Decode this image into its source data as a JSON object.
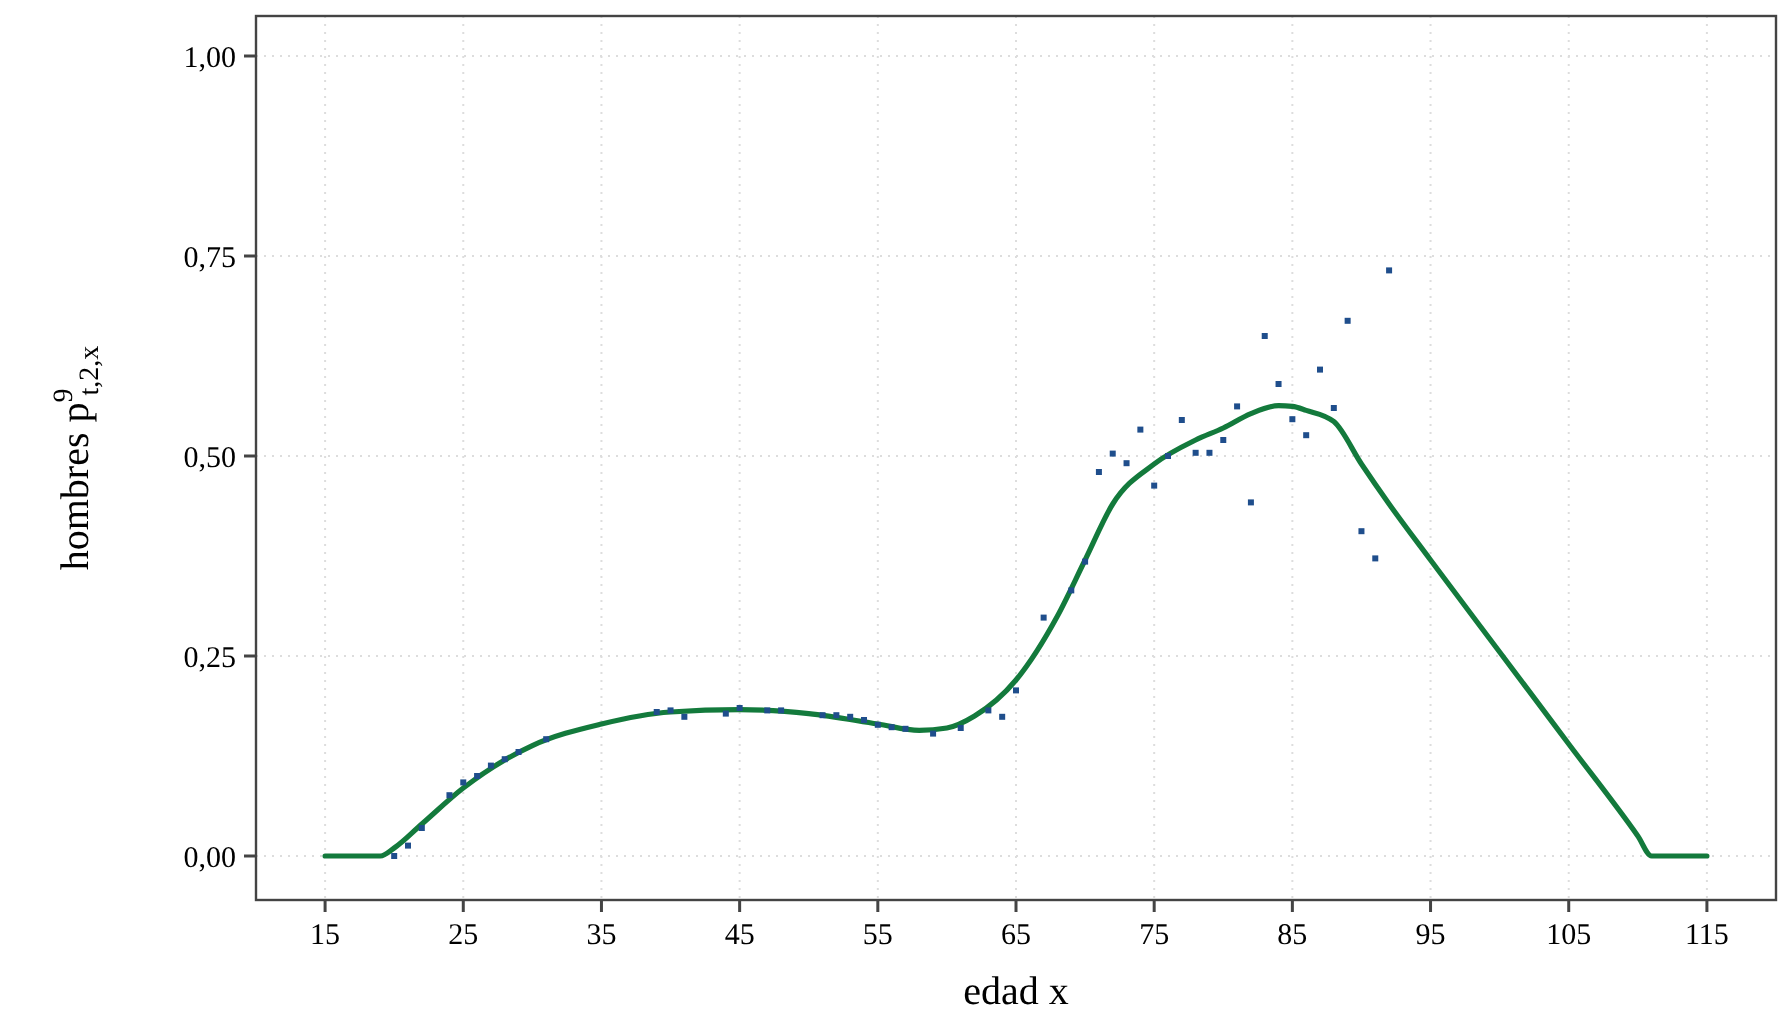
{
  "chart_data": {
    "type": "line",
    "xlabel": "edad x",
    "ylabel": "hombres p$^{9}$$_{t,2,x}$",
    "xlim": [
      10,
      120
    ],
    "xticks": [
      15,
      25,
      35,
      45,
      55,
      65,
      75,
      85,
      95,
      105,
      115
    ],
    "ylim": [
      -0.055,
      1.05
    ],
    "yticks": [
      {
        "value": 0,
        "label": "0,00"
      },
      {
        "value": 0.25,
        "label": "0,25"
      },
      {
        "value": 0.5,
        "label": "0,50"
      },
      {
        "value": 0.75,
        "label": "0,75"
      },
      {
        "value": 1,
        "label": "1,00"
      }
    ],
    "grid": true,
    "series": [
      {
        "type": "scatter",
        "color": "#1f4e8c",
        "marker": "square",
        "x": [
          20,
          21,
          22,
          24,
          25,
          26,
          27,
          28,
          29,
          31,
          39,
          40,
          41,
          44,
          45,
          47,
          48,
          51,
          52,
          53,
          54,
          55,
          56,
          57,
          59,
          61,
          63,
          64,
          65,
          67,
          69,
          70,
          71,
          72,
          73,
          74,
          75,
          76,
          77,
          78,
          79,
          80,
          81,
          82,
          83,
          84,
          85,
          86,
          87,
          88,
          89,
          90,
          91,
          92
        ],
        "values": [
          0.0,
          0.013,
          0.035,
          0.076,
          0.092,
          0.1,
          0.113,
          0.121,
          0.13,
          0.146,
          0.18,
          0.182,
          0.174,
          0.178,
          0.185,
          0.182,
          0.182,
          0.176,
          0.176,
          0.174,
          0.17,
          0.164,
          0.161,
          0.159,
          0.153,
          0.16,
          0.182,
          0.174,
          0.207,
          0.298,
          0.332,
          0.368,
          0.48,
          0.503,
          0.491,
          0.533,
          0.463,
          0.5,
          0.545,
          0.504,
          0.504,
          0.52,
          0.562,
          0.442,
          0.65,
          0.59,
          0.546,
          0.526,
          0.608,
          0.56,
          0.669,
          0.406,
          0.372,
          0.732
        ]
      },
      {
        "color": "#137a3c",
        "marker": "none",
        "line_style": "solid",
        "x": [
          15,
          19,
          20,
          22,
          25,
          28,
          30,
          35,
          40,
          45,
          50,
          55,
          58,
          60,
          62,
          65,
          68,
          70,
          72,
          75,
          78,
          80,
          82,
          84,
          85,
          86,
          88,
          90,
          92,
          95,
          100,
          105,
          110,
          111,
          115
        ],
        "values": [
          0,
          0,
          0.01,
          0.04,
          0.085,
          0.12,
          0.138,
          0.165,
          0.18,
          0.183,
          0.178,
          0.165,
          0.157,
          0.16,
          0.175,
          0.22,
          0.3,
          0.37,
          0.44,
          0.49,
          0.52,
          0.535,
          0.553,
          0.563,
          0.562,
          0.557,
          0.543,
          0.49,
          0.44,
          0.37,
          0.255,
          0.14,
          0.025,
          0,
          0
        ]
      }
    ]
  }
}
